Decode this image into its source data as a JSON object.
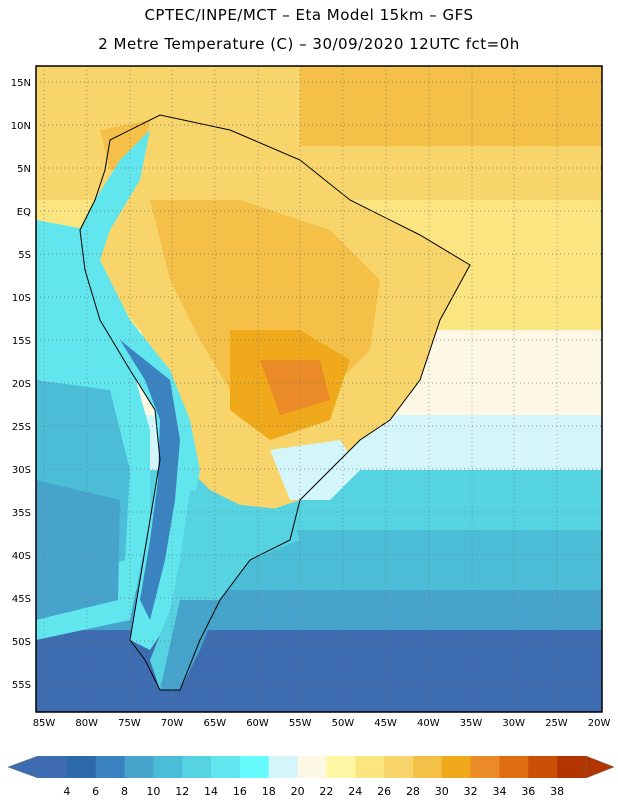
{
  "header": {
    "line1": "CPTEC/INPE/MCT –  Eta Model 15km – GFS",
    "line2": "2 Metre Temperature (C) – 30/09/2020 12UTC fct=0h"
  },
  "map": {
    "lat_labels": [
      "15N",
      "10N",
      "5N",
      "EQ",
      "5S",
      "10S",
      "15S",
      "20S",
      "25S",
      "30S",
      "35S",
      "40S",
      "45S",
      "50S",
      "55S"
    ],
    "lon_labels": [
      "85W",
      "80W",
      "75W",
      "70W",
      "65W",
      "60W",
      "55W",
      "50W",
      "45W",
      "40W",
      "35W",
      "30W",
      "25W",
      "20W"
    ],
    "lon_range": [
      -86,
      -19
    ],
    "lat_range": [
      -58,
      17
    ]
  },
  "colorbar": {
    "labels": [
      "4",
      "6",
      "8",
      "10",
      "12",
      "14",
      "16",
      "18",
      "20",
      "22",
      "24",
      "26",
      "28",
      "30",
      "32",
      "34",
      "36",
      "38"
    ],
    "colors": [
      "#3d6db0",
      "#2c6aa8",
      "#3a83c0",
      "#45a3cc",
      "#4bbdd6",
      "#55d3e0",
      "#62e6ee",
      "#66fbff",
      "#d4f6fb",
      "#fdf7e6",
      "#fef7a3",
      "#fbe580",
      "#f7d56b",
      "#f4c048",
      "#efa91b",
      "#eb8b27",
      "#e06d12",
      "#ca4e04",
      "#b23500"
    ]
  }
}
